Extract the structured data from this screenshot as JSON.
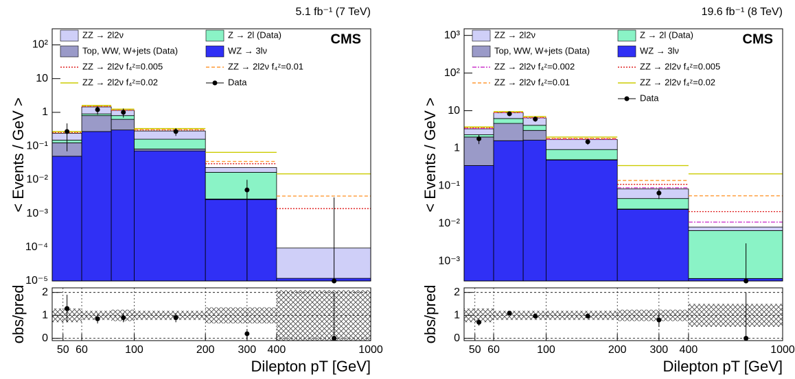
{
  "chart_data": [
    {
      "type": "histogram",
      "title": "5.1 fb⁻¹ (7 TeV)",
      "label": "CMS",
      "ylabel": "< Events / GeV >",
      "log_x": true,
      "log_y": true,
      "bins": [
        45,
        60,
        80,
        100,
        200,
        400,
        1000
      ],
      "xlim": [
        45,
        1000
      ],
      "xticks": [
        50,
        60,
        100,
        200,
        300,
        400,
        1000
      ],
      "ylim": [
        1e-05,
        300
      ],
      "yticks": [
        {
          "value": 1e-05,
          "label": "10⁻⁵"
        },
        {
          "value": 0.0001,
          "label": "10⁻⁴"
        },
        {
          "value": 0.001,
          "label": "10⁻³"
        },
        {
          "value": 0.01,
          "label": "10⁻²"
        },
        {
          "value": 0.1,
          "label": "10⁻¹"
        },
        1,
        10,
        {
          "value": 100,
          "label": "10²"
        }
      ],
      "series": [
        {
          "name": "WZ → 3lν",
          "color": "#3030f5",
          "values": [
            0.05,
            0.27,
            0.3,
            0.072,
            0.0026,
            1.2e-05
          ]
        },
        {
          "name": "Top, WW, W+jets (Data)",
          "color": "#9a9ac8",
          "values": [
            0.075,
            0.53,
            0.32,
            0.01,
            0.0001,
            0
          ]
        },
        {
          "name": "Z → 2l (Data)",
          "color": "#8af3c6",
          "values": [
            0.025,
            0.1,
            0.18,
            0.078,
            0.014,
            0
          ]
        },
        {
          "name": "ZZ → 2l2ν",
          "color": "#cfcff8",
          "values": [
            0.09,
            0.55,
            0.35,
            0.12,
            0.0064,
            8.3e-05
          ]
        }
      ],
      "lines": [
        {
          "name": "ZZ → 2l2ν f₄ᶻ=0.005",
          "color": "#e02020",
          "dash": "2,2",
          "values": [
            0.25,
            1.5,
            1.15,
            0.3,
            0.03,
            0.0014
          ]
        },
        {
          "name": "ZZ → 2l2ν f₄ᶻ=0.01",
          "color": "#ff9933",
          "dash": "5,3",
          "values": [
            0.26,
            1.55,
            1.2,
            0.31,
            0.035,
            0.0033
          ]
        },
        {
          "name": "ZZ → 2l2ν f₄ᶻ=0.02",
          "color": "#cccc00",
          "dash": "none",
          "values": [
            0.27,
            1.6,
            1.25,
            0.33,
            0.065,
            0.015
          ]
        }
      ],
      "data": {
        "name": "Data",
        "x": [
          52,
          70,
          90,
          150,
          300,
          700
        ],
        "values": [
          0.27,
          1.2,
          1.0,
          0.27,
          0.005,
          0
        ],
        "errors": [
          0.2,
          0.35,
          0.3,
          0.07,
          0.005,
          0.003
        ]
      }
    },
    {
      "type": "ratio",
      "ylabel": "obs/pred",
      "xlabel": "Dilepton pT [GeV]",
      "log_x": true,
      "grid": true,
      "bins": [
        45,
        60,
        80,
        100,
        200,
        400,
        1000
      ],
      "xlim": [
        45,
        1000
      ],
      "xticks": [
        50,
        60,
        100,
        200,
        300,
        400,
        1000
      ],
      "ylim": [
        -0.1,
        2.2
      ],
      "yticks": [
        0,
        1,
        2
      ],
      "band": [
        0.3,
        0.2,
        0.25,
        0.2,
        0.35,
        1.1
      ],
      "x": [
        52,
        70,
        90,
        150,
        300,
        700
      ],
      "values": [
        1.3,
        0.85,
        0.9,
        0.9,
        0.2,
        0
      ],
      "errors": [
        0.6,
        0.2,
        0.2,
        0.2,
        0.2,
        2
      ]
    },
    {
      "type": "histogram",
      "title": "19.6 fb⁻¹ (8 TeV)",
      "label": "CMS",
      "ylabel": "< Events / GeV >",
      "log_x": true,
      "log_y": true,
      "bins": [
        45,
        60,
        80,
        100,
        200,
        400,
        1000
      ],
      "xlim": [
        45,
        1000
      ],
      "xticks": [
        50,
        60,
        100,
        200,
        300,
        400,
        1000
      ],
      "ylim": [
        0.0003,
        1500
      ],
      "yticks": [
        {
          "value": 0.001,
          "label": "10⁻³"
        },
        {
          "value": 0.01,
          "label": "10⁻²"
        },
        {
          "value": 0.1,
          "label": "10⁻¹"
        },
        1,
        10,
        {
          "value": 100,
          "label": "10²"
        },
        {
          "value": 1000,
          "label": "10³"
        }
      ],
      "series": [
        {
          "name": "WZ → 3lν",
          "color": "#3030f5",
          "values": [
            0.35,
            1.6,
            1.65,
            0.49,
            0.024,
            0.00035
          ]
        },
        {
          "name": "Top, WW, W+jets (Data)",
          "color": "#9a9ac8",
          "values": [
            1.65,
            3.0,
            1.35,
            0.01,
            0.0005,
            0
          ]
        },
        {
          "name": "Z → 2l (Data)",
          "color": "#8af3c6",
          "values": [
            0.3,
            1.6,
            1.1,
            0.43,
            0.022,
            0.0062
          ]
        },
        {
          "name": "ZZ → 2l2ν",
          "color": "#cfcff8",
          "values": [
            1.0,
            2.6,
            2.3,
            0.78,
            0.037,
            0.0016
          ]
        }
      ],
      "lines": [
        {
          "name": "ZZ → 2l2ν f₄ᶻ=0.002",
          "color": "#cc33cc",
          "dash": "6,2,2,2",
          "values": [
            3.4,
            8.9,
            6.5,
            1.75,
            0.09,
            0.011
          ]
        },
        {
          "name": "ZZ → 2l2ν f₄ᶻ=0.005",
          "color": "#e02020",
          "dash": "2,2",
          "values": [
            3.5,
            9.0,
            6.6,
            1.8,
            0.11,
            0.021
          ]
        },
        {
          "name": "ZZ → 2l2ν f₄ᶻ=0.01",
          "color": "#ff9933",
          "dash": "5,3",
          "values": [
            3.6,
            9.2,
            6.8,
            1.85,
            0.14,
            0.055
          ]
        },
        {
          "name": "ZZ → 2l2ν f₄ᶻ=0.02",
          "color": "#cccc00",
          "dash": "none",
          "values": [
            3.7,
            9.5,
            7.0,
            2.0,
            0.35,
            0.21
          ]
        }
      ],
      "data": {
        "name": "Data",
        "x": [
          52,
          70,
          90,
          150,
          300,
          700
        ],
        "values": [
          1.8,
          8.3,
          6.0,
          1.5,
          0.065,
          0
        ],
        "errors": [
          0.5,
          1.0,
          0.9,
          0.25,
          0.02,
          0.003
        ]
      }
    },
    {
      "type": "ratio",
      "ylabel": "obs/pred",
      "xlabel": "Dilepton pT [GeV]",
      "log_x": true,
      "grid": true,
      "bins": [
        45,
        60,
        80,
        100,
        200,
        400,
        1000
      ],
      "xlim": [
        45,
        1000
      ],
      "xticks": [
        50,
        60,
        100,
        200,
        300,
        400,
        1000
      ],
      "ylim": [
        -0.1,
        2.2
      ],
      "yticks": [
        0,
        1,
        2
      ],
      "band": [
        0.3,
        0.2,
        0.2,
        0.2,
        0.25,
        0.5
      ],
      "x": [
        52,
        70,
        90,
        150,
        300,
        700
      ],
      "values": [
        0.7,
        1.1,
        0.97,
        0.97,
        0.8,
        0
      ],
      "errors": [
        0.15,
        0.1,
        0.1,
        0.08,
        0.3,
        2
      ]
    }
  ]
}
